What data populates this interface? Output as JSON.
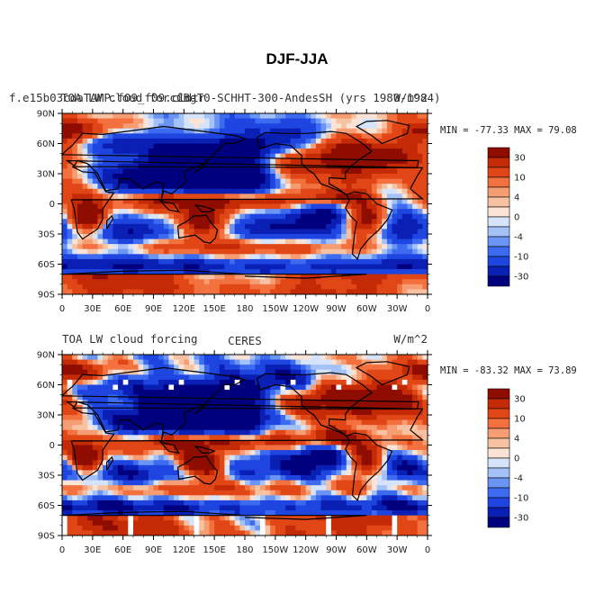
{
  "figure": {
    "title": "DJF-JJA"
  },
  "colors": {
    "levels": [
      -30,
      -20,
      -10,
      -6,
      -4,
      -2,
      0,
      2,
      4,
      6,
      10,
      20,
      30
    ],
    "palette": [
      "#00007f",
      "#0a1fb4",
      "#1f45e0",
      "#3d6bf0",
      "#6b95f5",
      "#a4c2f8",
      "#d6e4fb",
      "#fbe4d6",
      "#f7c2a2",
      "#f79d73",
      "#f2713f",
      "#e14716",
      "#c42a06",
      "#8f0d00"
    ]
  },
  "chart_data": [
    {
      "type": "heatmap",
      "name": "model",
      "title_left": "f.e15b03cdaTAMP.f09_f09.cldtr",
      "title_overlap": "TOA LW cloud forcing",
      "title_center": "CB-T0-SCHHT-300-AndesSH  (yrs 1980-1984)",
      "title_right": "W/m^2",
      "min_max_text": "MIN = -77.33  MAX =  79.08",
      "x_ticks": [
        "0",
        "30E",
        "60E",
        "90E",
        "120E",
        "150E",
        "180",
        "150W",
        "120W",
        "90W",
        "60W",
        "30W",
        "0"
      ],
      "y_ticks": [
        "90N",
        "60N",
        "30N",
        "0",
        "30S",
        "60S",
        "90S"
      ],
      "xlim": [
        0,
        360
      ],
      "ylim": [
        -90,
        90
      ],
      "colorbar_labels": [
        "30",
        "10",
        "4",
        "0",
        "-4",
        "-10",
        "-30"
      ],
      "colorbar_levels": [
        30,
        10,
        4,
        0,
        -4,
        -10,
        -30
      ]
    },
    {
      "type": "heatmap",
      "name": "obs",
      "title_left": "TOA LW cloud forcing",
      "title_center": "CERES",
      "title_right": "W/m^2",
      "min_max_text": "MIN = -83.32  MAX =  73.89",
      "x_ticks": [
        "0",
        "30E",
        "60E",
        "90E",
        "120E",
        "150E",
        "180",
        "150W",
        "120W",
        "90W",
        "60W",
        "30W",
        "0"
      ],
      "y_ticks": [
        "90N",
        "60N",
        "30N",
        "0",
        "30S",
        "60S",
        "90S"
      ],
      "xlim": [
        0,
        360
      ],
      "ylim": [
        -90,
        90
      ],
      "colorbar_labels": [
        "30",
        "10",
        "4",
        "0",
        "-4",
        "-10",
        "-30"
      ],
      "colorbar_levels": [
        30,
        10,
        4,
        0,
        -4,
        -10,
        -30
      ]
    }
  ]
}
